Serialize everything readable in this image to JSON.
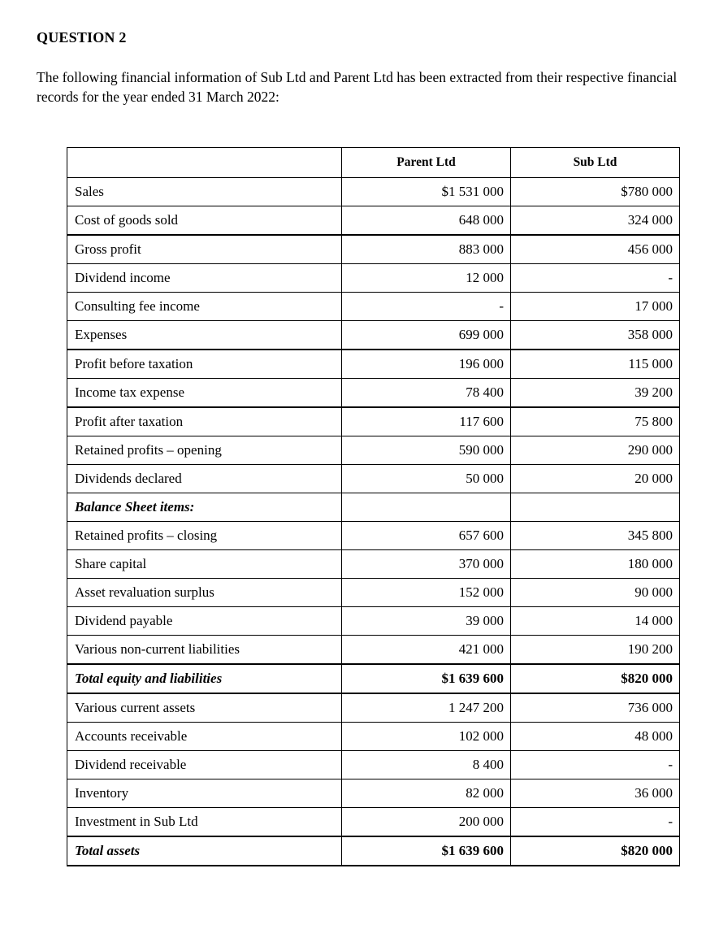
{
  "page": {
    "title": "QUESTION 2",
    "intro": "The following financial information of Sub Ltd and Parent Ltd has been extracted from their respective financial records for the year ended 31 March 2022:"
  },
  "table": {
    "columns": [
      "",
      "Parent Ltd",
      "Sub Ltd"
    ],
    "rows": [
      {
        "kind": "normal",
        "label": "Sales",
        "parent": "$1 531 000",
        "sub": "$780 000"
      },
      {
        "kind": "normal",
        "label": "Cost of goods sold",
        "parent": "648 000",
        "sub": "324 000"
      },
      {
        "kind": "computed",
        "label": "Gross profit",
        "parent": "883 000",
        "sub": "456 000"
      },
      {
        "kind": "normal",
        "label": "Dividend income",
        "parent": "12 000",
        "sub": "-"
      },
      {
        "kind": "normal",
        "label": "Consulting fee income",
        "parent": "-",
        "sub": "17 000"
      },
      {
        "kind": "normal",
        "label": "Expenses",
        "parent": "699 000",
        "sub": "358 000"
      },
      {
        "kind": "computed",
        "label": "Profit before taxation",
        "parent": "196 000",
        "sub": "115 000"
      },
      {
        "kind": "normal",
        "label": "Income tax expense",
        "parent": "78 400",
        "sub": "39 200"
      },
      {
        "kind": "computed",
        "label": "Profit after taxation",
        "parent": "117 600",
        "sub": "75 800"
      },
      {
        "kind": "normal",
        "label": "Retained profits – opening",
        "parent": "590 000",
        "sub": "290 000"
      },
      {
        "kind": "normal",
        "label": "Dividends declared",
        "parent": "50 000",
        "sub": "20 000"
      },
      {
        "kind": "section",
        "label": "Balance Sheet items:",
        "parent": "",
        "sub": ""
      },
      {
        "kind": "normal",
        "label": "Retained profits – closing",
        "parent": "657 600",
        "sub": "345 800"
      },
      {
        "kind": "normal",
        "label": "Share capital",
        "parent": "370 000",
        "sub": "180 000"
      },
      {
        "kind": "normal",
        "label": "Asset revaluation surplus",
        "parent": "152 000",
        "sub": "90 000"
      },
      {
        "kind": "normal",
        "label": "Dividend payable",
        "parent": "39 000",
        "sub": "14 000"
      },
      {
        "kind": "normal",
        "label": "Various non-current liabilities",
        "parent": "421 000",
        "sub": "190 200"
      },
      {
        "kind": "total",
        "label": "Total equity and liabilities",
        "parent": "$1 639 600",
        "sub": "$820 000"
      },
      {
        "kind": "normal",
        "label": "Various current assets",
        "parent": "1 247 200",
        "sub": "736 000"
      },
      {
        "kind": "normal",
        "label": "Accounts receivable",
        "parent": "102 000",
        "sub": "48 000"
      },
      {
        "kind": "normal",
        "label": "Dividend receivable",
        "parent": "8 400",
        "sub": "-"
      },
      {
        "kind": "normal",
        "label": "Inventory",
        "parent": "82 000",
        "sub": "36 000"
      },
      {
        "kind": "normal",
        "label": "Investment in Sub Ltd",
        "parent": "200 000",
        "sub": "-"
      },
      {
        "kind": "total",
        "label": "Total assets",
        "parent": "$1 639 600",
        "sub": "$820 000"
      }
    ]
  }
}
